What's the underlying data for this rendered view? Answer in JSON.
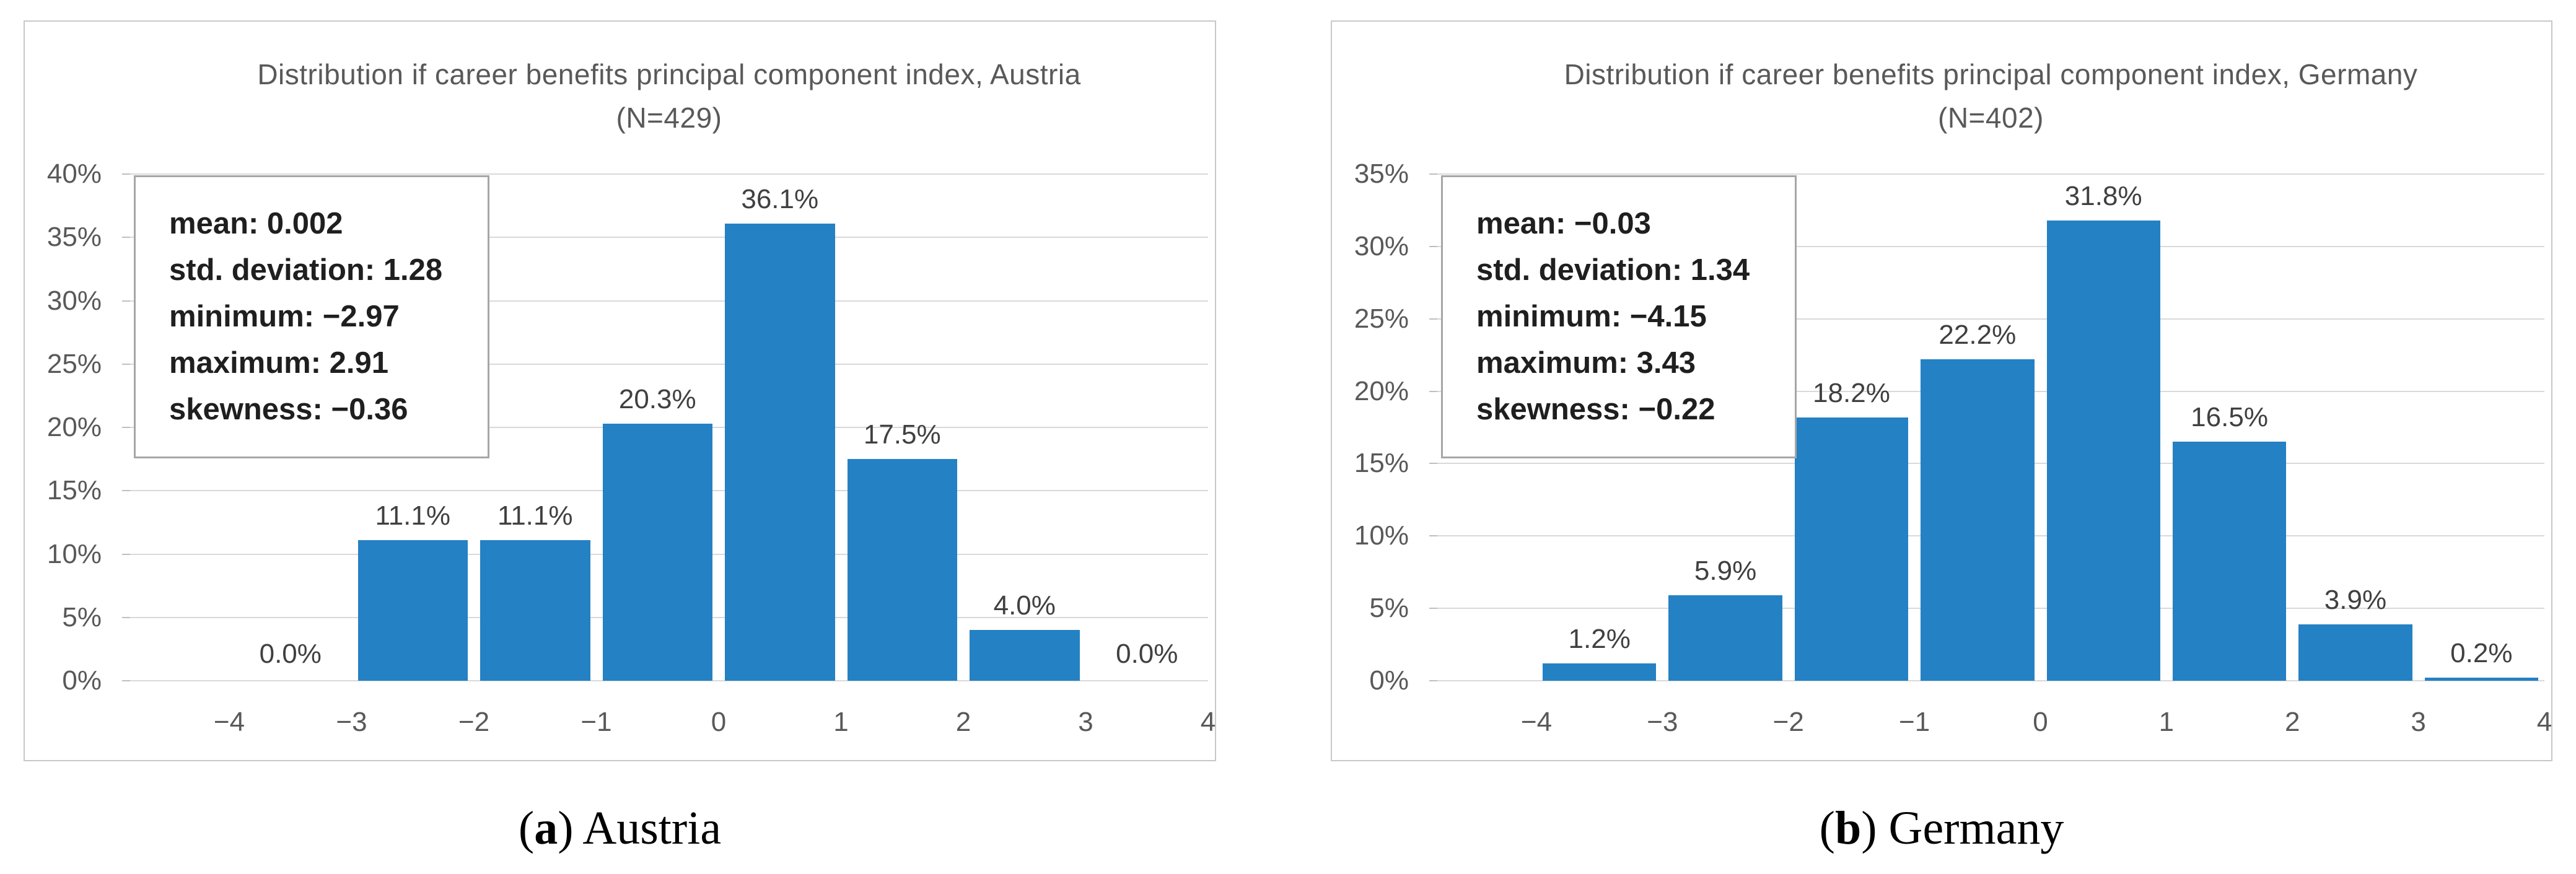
{
  "colors": {
    "bar": "#2481c4",
    "gridline": "#d9d9d9",
    "axis_text": "#595959",
    "bar_label_text": "#404040",
    "panel_border": "#c8c8c8",
    "stats_border": "#a6a6a6",
    "stats_text": "#1f1f1f"
  },
  "captions": [
    {
      "pre": "(",
      "letter": "a",
      "post": ") Austria"
    },
    {
      "pre": "(",
      "letter": "b",
      "post": ") Germany"
    }
  ],
  "chart_data": [
    {
      "type": "bar",
      "title": "Distribution if career benefits principal component index, Austria (N=429)",
      "title_line1": "Distribution if career benefits principal component index, Austria",
      "title_line2": "(N=429)",
      "xlabel": "",
      "ylabel": "",
      "bin_edges": [
        -4,
        -3,
        -2,
        -1,
        0,
        1,
        2,
        3,
        4
      ],
      "values_pct": [
        0.0,
        11.1,
        11.1,
        20.3,
        36.1,
        17.5,
        4.0,
        0.0
      ],
      "bar_labels": [
        "0.0%",
        "11.1%",
        "11.1%",
        "20.3%",
        "36.1%",
        "17.5%",
        "4.0%",
        "0.0%"
      ],
      "x_tick_labels": [
        "−4",
        "−3",
        "−2",
        "−1",
        "0",
        "1",
        "2",
        "3",
        "4"
      ],
      "ylim": [
        0,
        40
      ],
      "ytick_step": 5,
      "y_tick_labels": [
        "0%",
        "5%",
        "10%",
        "15%",
        "20%",
        "25%",
        "30%",
        "35%",
        "40%"
      ],
      "grid": true,
      "legend": null,
      "stats": {
        "mean": 0.002,
        "std_deviation": 1.28,
        "minimum": -2.97,
        "maximum": 2.91,
        "skewness": -0.36
      },
      "stats_lines": [
        "mean: 0.002",
        "std. deviation: 1.28",
        "minimum: −2.97",
        "maximum: 2.91",
        "skewness: −0.36"
      ]
    },
    {
      "type": "bar",
      "title": "Distribution if career benefits principal component index, Germany (N=402)",
      "title_line1": "Distribution if career benefits principal component index, Germany",
      "title_line2": "(N=402)",
      "xlabel": "",
      "ylabel": "",
      "bin_edges": [
        -4,
        -3,
        -2,
        -1,
        0,
        1,
        2,
        3,
        4
      ],
      "values_pct": [
        1.2,
        5.9,
        18.2,
        22.2,
        31.8,
        16.5,
        3.9,
        0.2
      ],
      "bar_labels": [
        "1.2%",
        "5.9%",
        "18.2%",
        "22.2%",
        "31.8%",
        "16.5%",
        "3.9%",
        "0.2%"
      ],
      "x_tick_labels": [
        "−4",
        "−3",
        "−2",
        "−1",
        "0",
        "1",
        "2",
        "3",
        "4"
      ],
      "ylim": [
        0,
        35
      ],
      "ytick_step": 5,
      "y_tick_labels": [
        "0%",
        "5%",
        "10%",
        "15%",
        "20%",
        "25%",
        "30%",
        "35%"
      ],
      "grid": true,
      "legend": null,
      "stats": {
        "mean": -0.03,
        "std_deviation": 1.34,
        "minimum": -4.15,
        "maximum": 3.43,
        "skewness": -0.22
      },
      "stats_lines": [
        "mean: −0.03",
        "std. deviation: 1.34",
        "minimum: −4.15",
        "maximum: 3.43",
        "skewness: −0.22"
      ]
    }
  ]
}
